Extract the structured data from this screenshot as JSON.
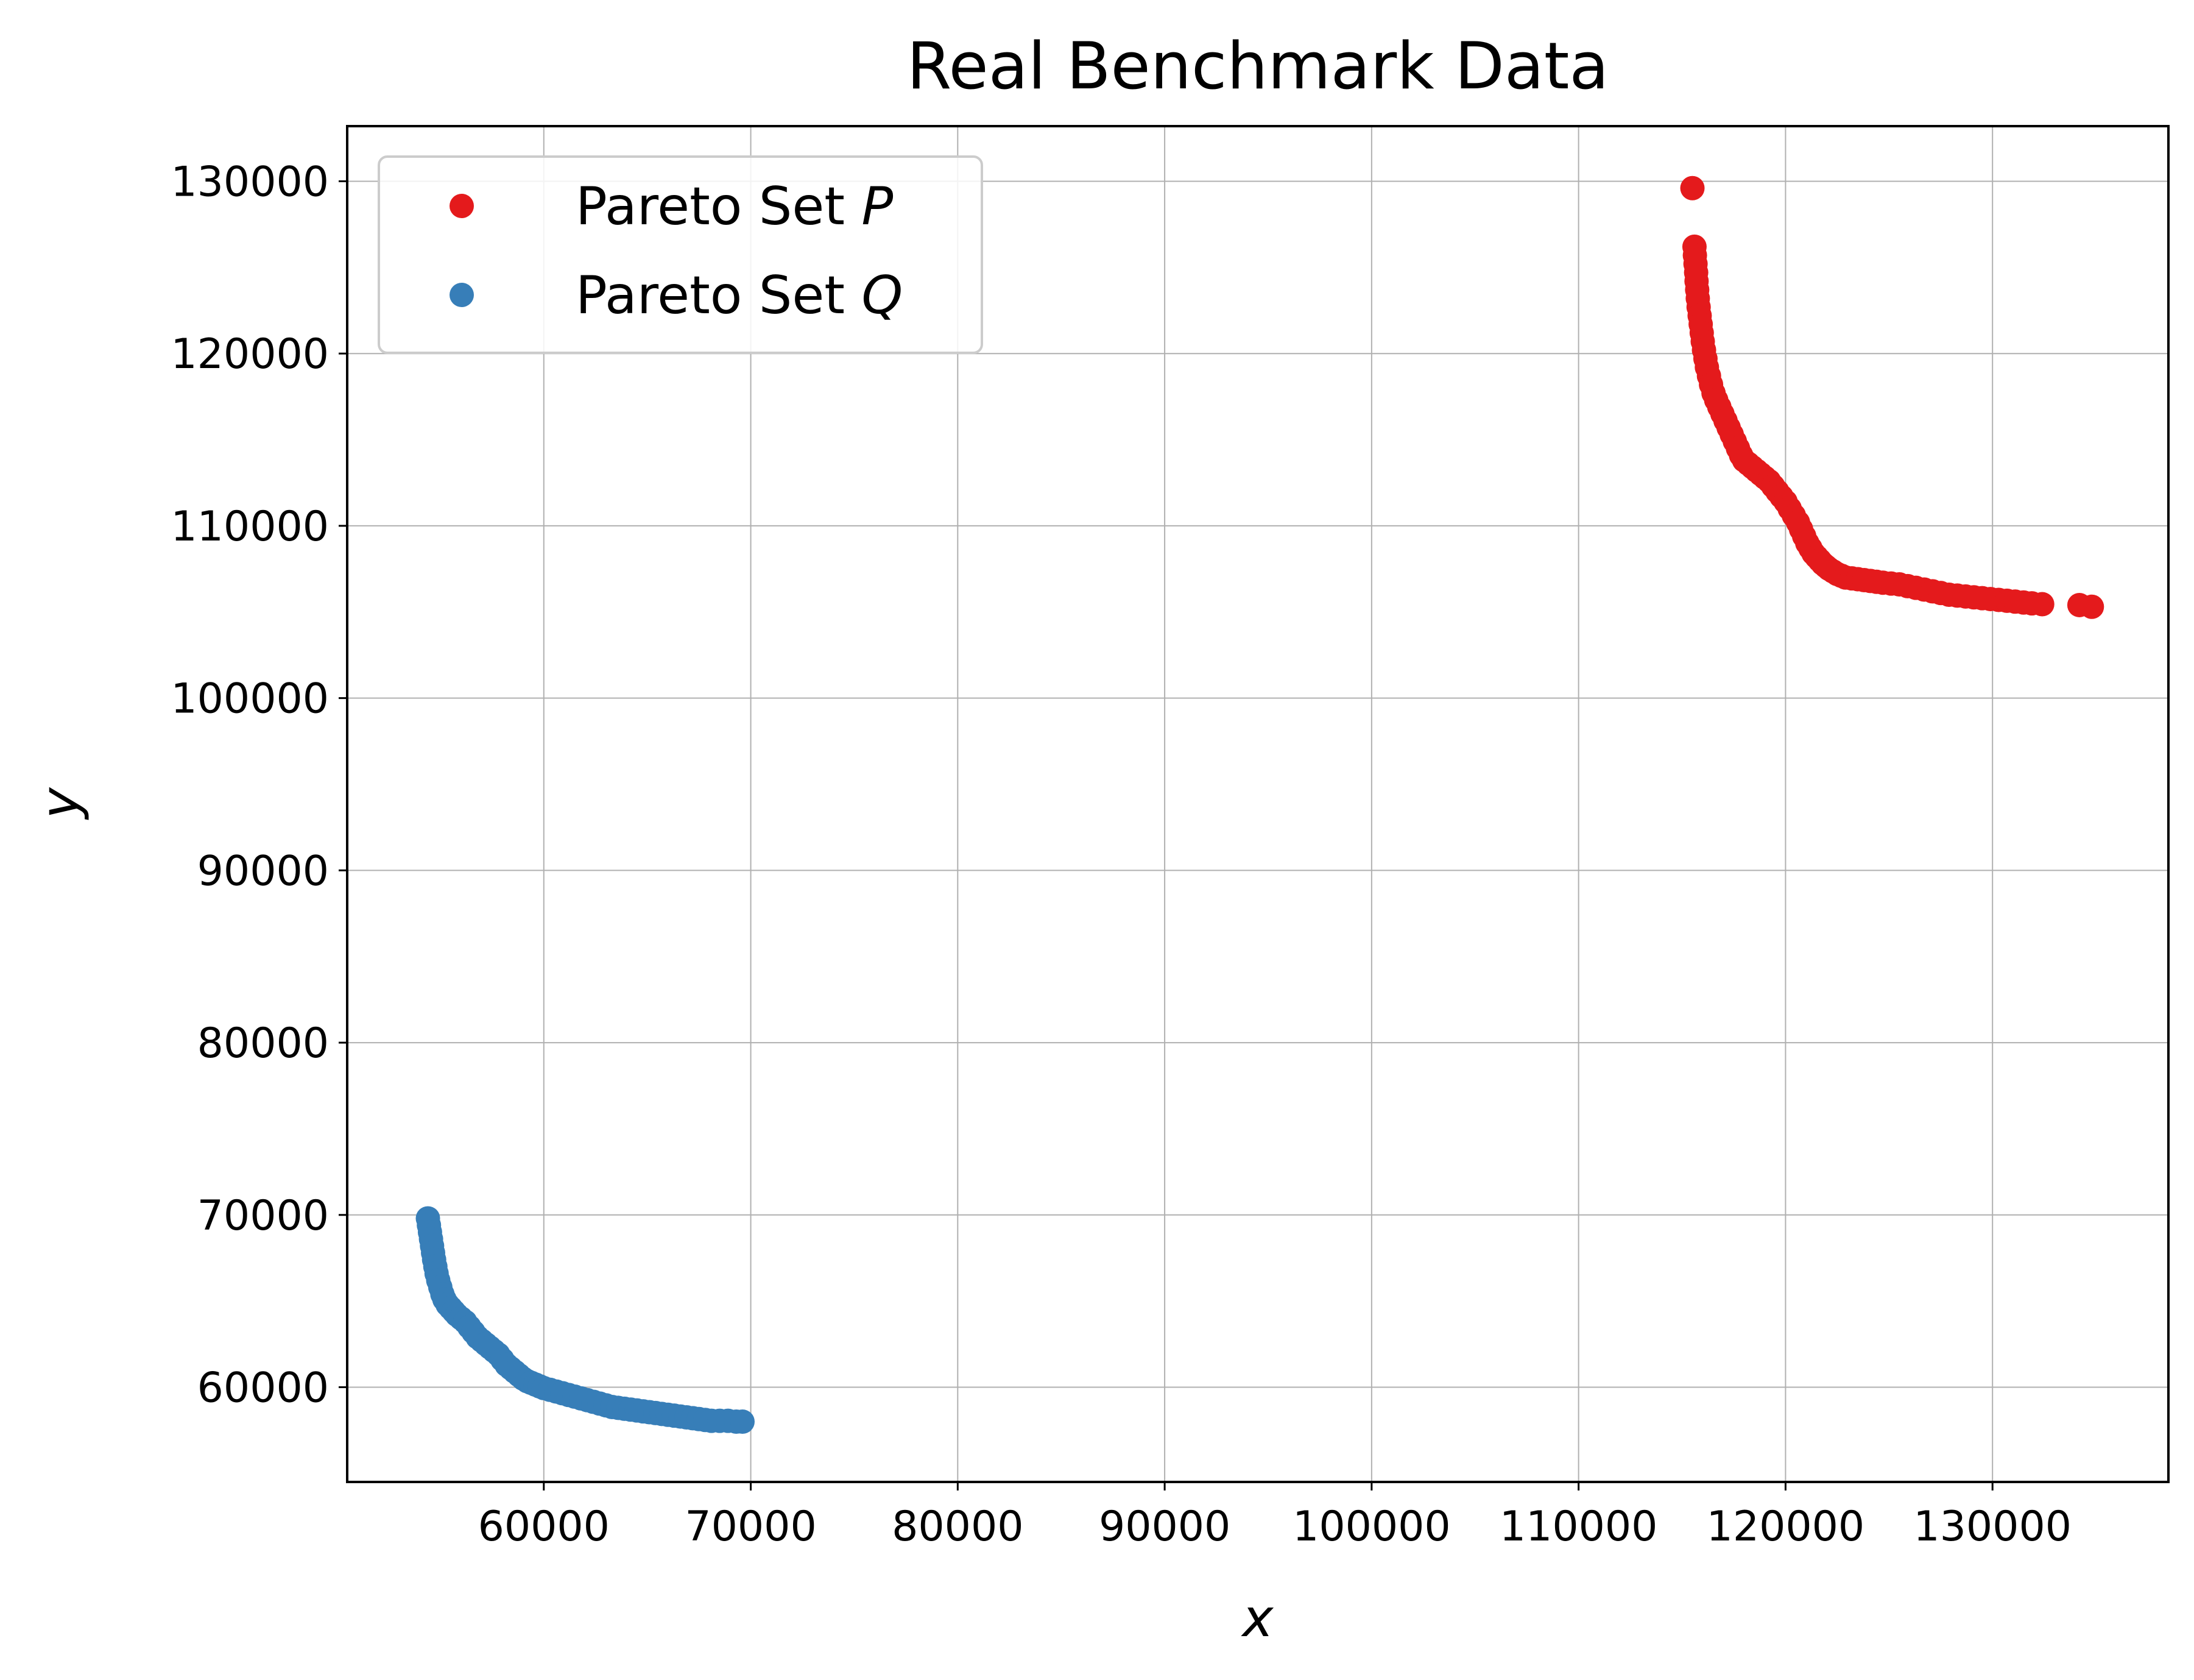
{
  "chart_data": {
    "type": "scatter",
    "title": "Real Benchmark Data",
    "xlabel": "x",
    "ylabel": "y",
    "xlim": [
      50500,
      138500
    ],
    "ylim": [
      54500,
      133200
    ],
    "xticks": [
      60000,
      70000,
      80000,
      90000,
      100000,
      110000,
      120000,
      130000
    ],
    "yticks": [
      60000,
      70000,
      80000,
      90000,
      100000,
      110000,
      120000,
      130000
    ],
    "grid": true,
    "legend_position": "top-left",
    "series": [
      {
        "name": "Pareto Set P",
        "name_prefix": "Pareto Set ",
        "name_symbol": "P",
        "color": "#e41a1c",
        "x": [
          115500,
          115600,
          115620,
          115650,
          115680,
          115700,
          115730,
          115760,
          115800,
          115850,
          115900,
          115950,
          116000,
          116060,
          116130,
          116200,
          116300,
          116400,
          116520,
          116650,
          116800,
          116950,
          117100,
          117250,
          117400,
          117550,
          117700,
          117850,
          118000,
          118200,
          118400,
          118600,
          118800,
          119000,
          119200,
          119400,
          119600,
          119800,
          120000,
          120200,
          120400,
          120600,
          120750,
          120900,
          121050,
          121200,
          121350,
          121500,
          121650,
          121800,
          121950,
          122100,
          122300,
          122500,
          122700,
          122900,
          123200,
          123500,
          123800,
          124100,
          124400,
          124700,
          125100,
          125500,
          125900,
          126300,
          126700,
          127100,
          127500,
          127900,
          128300,
          128700,
          129100,
          129500,
          129900,
          130300,
          130700,
          131100,
          131500,
          131900,
          132400,
          134200,
          134800
        ],
        "y": [
          129600,
          126200,
          125700,
          125200,
          124700,
          124200,
          123700,
          123200,
          122700,
          122200,
          121700,
          121200,
          120700,
          120200,
          119700,
          119200,
          118700,
          118200,
          117700,
          117300,
          116900,
          116500,
          116100,
          115700,
          115300,
          114900,
          114500,
          114100,
          113800,
          113600,
          113400,
          113200,
          113000,
          112800,
          112600,
          112300,
          112000,
          111700,
          111400,
          111000,
          110600,
          110200,
          109800,
          109400,
          109000,
          108700,
          108400,
          108200,
          108000,
          107800,
          107650,
          107500,
          107350,
          107200,
          107100,
          107000,
          106950,
          106900,
          106850,
          106800,
          106750,
          106700,
          106650,
          106600,
          106500,
          106400,
          106300,
          106200,
          106100,
          106000,
          105950,
          105900,
          105850,
          105800,
          105750,
          105700,
          105650,
          105600,
          105550,
          105500,
          105450,
          105400,
          105300
        ]
      },
      {
        "name": "Pareto Set Q",
        "name_prefix": "Pareto Set ",
        "name_symbol": "Q",
        "color": "#377eb8",
        "x": [
          54400,
          54450,
          54500,
          54550,
          54600,
          54650,
          54700,
          54760,
          54820,
          54900,
          55000,
          55100,
          55200,
          55350,
          55500,
          55650,
          55800,
          56000,
          56200,
          56400,
          56600,
          56800,
          57000,
          57200,
          57400,
          57600,
          57800,
          58000,
          58200,
          58400,
          58600,
          58800,
          59000,
          59200,
          59400,
          59600,
          59800,
          60000,
          60300,
          60600,
          60900,
          61200,
          61500,
          61800,
          62100,
          62400,
          62700,
          63000,
          63300,
          63600,
          63900,
          64200,
          64500,
          64800,
          65100,
          65400,
          65700,
          66000,
          66300,
          66600,
          66900,
          67200,
          67500,
          67800,
          68100,
          68500,
          68900,
          69300,
          69600
        ],
        "y": [
          69800,
          69400,
          69000,
          68600,
          68200,
          67800,
          67400,
          67000,
          66600,
          66200,
          65800,
          65400,
          65100,
          64800,
          64600,
          64400,
          64200,
          64000,
          63800,
          63500,
          63200,
          62900,
          62700,
          62500,
          62300,
          62100,
          61900,
          61600,
          61300,
          61100,
          60900,
          60700,
          60500,
          60350,
          60250,
          60150,
          60050,
          59950,
          59850,
          59750,
          59650,
          59550,
          59450,
          59350,
          59250,
          59150,
          59050,
          58950,
          58850,
          58800,
          58750,
          58700,
          58650,
          58600,
          58550,
          58500,
          58450,
          58400,
          58350,
          58300,
          58250,
          58200,
          58150,
          58100,
          58050,
          58050,
          58050,
          58000,
          58000
        ]
      }
    ]
  }
}
